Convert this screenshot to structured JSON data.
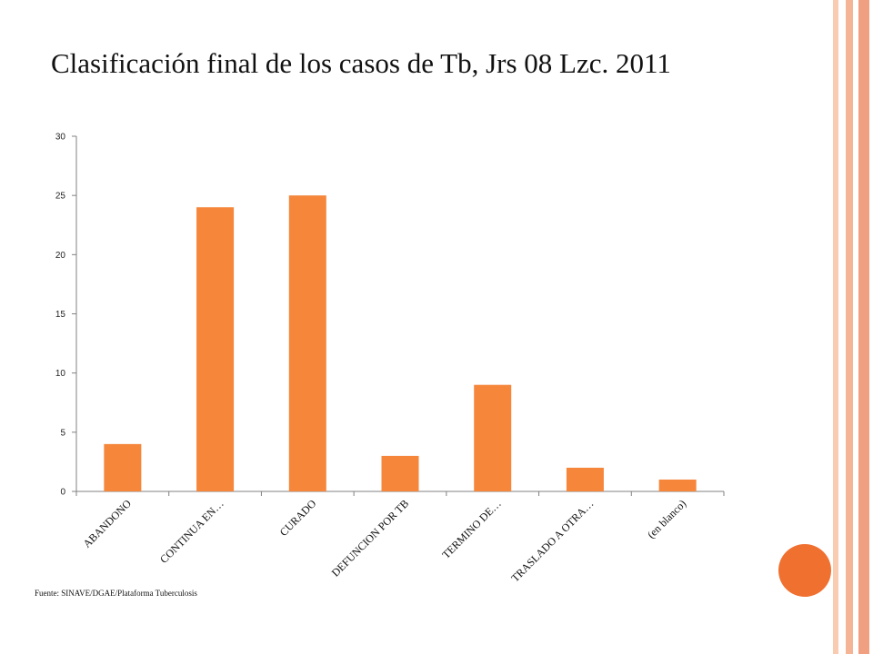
{
  "slide": {
    "title": "Clasificación final de los casos de Tb, Jrs 08 Lzc. 2011",
    "source": "Fuente: SINAVE/DGAE/Plataforma Tuberculosis"
  },
  "theme": {
    "bar_color": "#F5863A",
    "circle_color": "#F07030",
    "stripe_colors": [
      "#F9CBB0",
      "#F5B496",
      "#F0A080"
    ]
  },
  "chart_data": {
    "type": "bar",
    "categories": [
      "ABANDONO",
      "CONTINUA EN…",
      "CURADO",
      "DEFUNCION POR TB",
      "TERMINO DE…",
      "TRASLADO A OTRA…",
      "(en blanco)"
    ],
    "values": [
      4,
      24,
      25,
      3,
      9,
      2,
      1
    ],
    "ylim": [
      0,
      30
    ],
    "yticks": [
      0,
      5,
      10,
      15,
      20,
      25,
      30
    ],
    "grid": false,
    "legend": "none"
  }
}
